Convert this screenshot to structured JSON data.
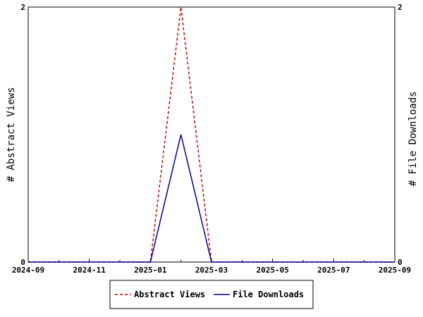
{
  "chart_data": {
    "type": "line",
    "x": [
      "2024-09",
      "2024-10",
      "2024-11",
      "2024-12",
      "2025-01",
      "2025-02",
      "2025-03",
      "2025-04",
      "2025-05",
      "2025-06",
      "2025-07",
      "2025-08",
      "2025-09"
    ],
    "x_tick_labels": [
      "2024-09",
      "2024-11",
      "2025-01",
      "2025-03",
      "2025-05",
      "2025-07",
      "2025-09"
    ],
    "series": [
      {
        "name": "Abstract Views",
        "values": [
          0,
          0,
          0,
          0,
          0,
          2,
          0,
          0,
          0,
          0,
          0,
          0,
          0
        ],
        "color": "#cc0000",
        "style": "dashed",
        "axis": "left"
      },
      {
        "name": "File Downloads",
        "values": [
          0,
          0,
          0,
          0,
          0,
          1,
          0,
          0,
          0,
          0,
          0,
          0,
          0
        ],
        "color": "#000099",
        "style": "solid",
        "axis": "right"
      }
    ],
    "ylabel": "# Abstract Views",
    "ylabel_right": "# File Downloads",
    "ylim": [
      0,
      2
    ],
    "ylim_right": [
      0,
      2
    ],
    "y_ticks": [
      "0",
      "2"
    ],
    "y_ticks_right": [
      "0",
      "2"
    ],
    "grid": false,
    "legend_position": "bottom-center"
  }
}
